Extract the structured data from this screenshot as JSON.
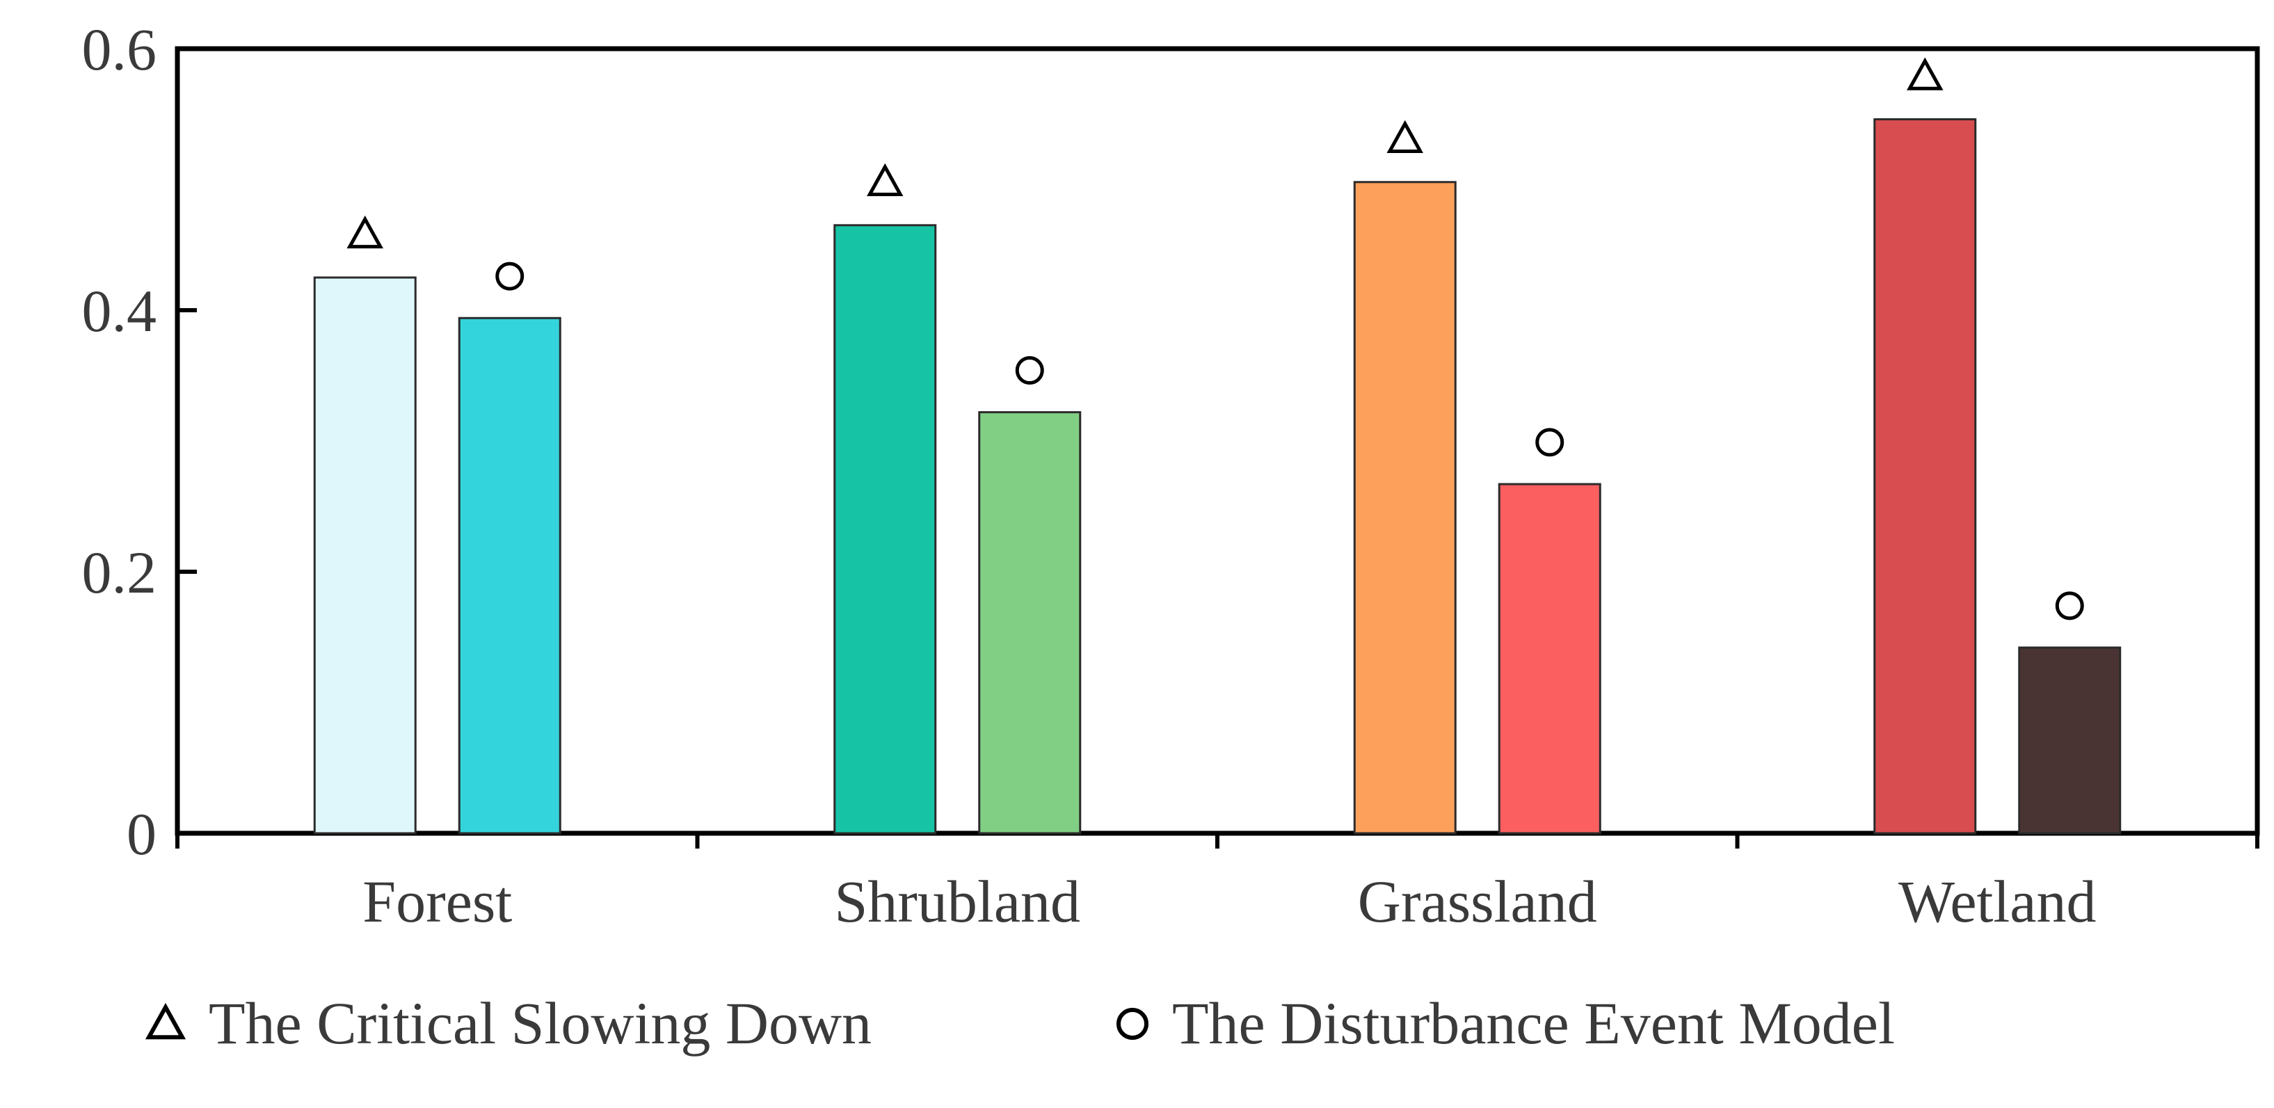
{
  "chart_data": {
    "type": "bar",
    "categories": [
      "Forest",
      "Shrubland",
      "Grassland",
      "Wetland"
    ],
    "ylim": [
      0,
      0.6
    ],
    "yticks": [
      0,
      0.2,
      0.4,
      0.6
    ],
    "ytick_labels": [
      "0",
      "0.2",
      "0.4",
      "0.6"
    ],
    "grid": false,
    "legend_position": "bottom",
    "series": [
      {
        "name": "The Critical Slowing Down",
        "marker": "triangle",
        "values": [
          0.425,
          0.465,
          0.498,
          0.546
        ],
        "colors": [
          "#dff7fb",
          "#16c4a5",
          "#fda05c",
          "#d84d4f"
        ]
      },
      {
        "name": "The Disturbance Event Model",
        "marker": "circle",
        "values": [
          0.394,
          0.322,
          0.267,
          0.142
        ],
        "colors": [
          "#33d4dc",
          "#80cf84",
          "#fb5f5f",
          "#4a3433"
        ]
      }
    ],
    "marker_offset": 0.032,
    "title": "",
    "xlabel": "",
    "ylabel": ""
  }
}
